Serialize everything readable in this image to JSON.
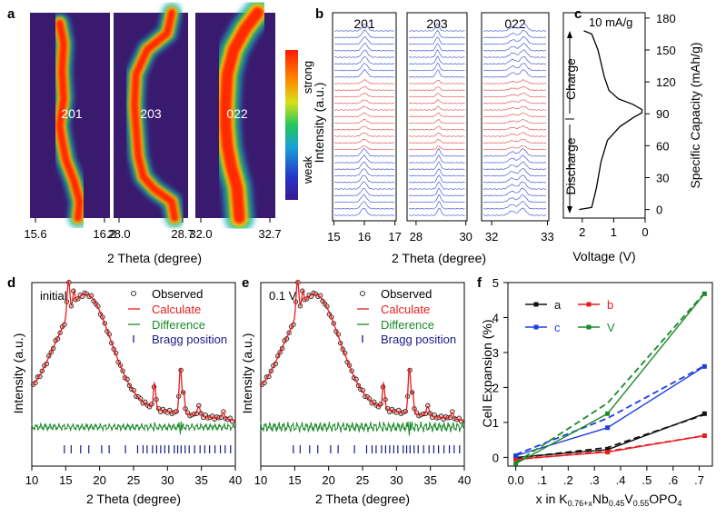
{
  "figure": {
    "panel_letters": [
      "a",
      "b",
      "c",
      "d",
      "e",
      "f"
    ]
  },
  "chart_data": [
    {
      "panel": "a",
      "type": "heatmap",
      "peaks": [
        "201",
        "203",
        "022"
      ],
      "xlabel": "2 Theta (degree)",
      "x_ticks": [
        [
          "15.6",
          "16.2"
        ],
        [
          "28.0",
          "28.7"
        ],
        [
          "32.0",
          "32.7"
        ]
      ],
      "colorbar": {
        "top": "strong",
        "bottom": "weak"
      },
      "colors": {
        "background": "#3a1a6e",
        "hot": "#ff2a00"
      },
      "ridge_paths": [
        [
          [
            0.37,
            0.05
          ],
          [
            0.42,
            0.15
          ],
          [
            0.4,
            0.28
          ],
          [
            0.42,
            0.42
          ],
          [
            0.37,
            0.55
          ],
          [
            0.4,
            0.62
          ],
          [
            0.45,
            0.72
          ],
          [
            0.55,
            0.82
          ],
          [
            0.62,
            0.92
          ],
          [
            0.6,
            1.0
          ]
        ],
        [
          [
            0.78,
            0.0
          ],
          [
            0.72,
            0.1
          ],
          [
            0.45,
            0.18
          ],
          [
            0.3,
            0.3
          ],
          [
            0.28,
            0.45
          ],
          [
            0.3,
            0.55
          ],
          [
            0.33,
            0.7
          ],
          [
            0.4,
            0.8
          ],
          [
            0.55,
            0.86
          ],
          [
            0.78,
            0.92
          ],
          [
            0.82,
            1.0
          ]
        ],
        [
          [
            0.78,
            0.0
          ],
          [
            0.62,
            0.08
          ],
          [
            0.48,
            0.18
          ],
          [
            0.4,
            0.3
          ],
          [
            0.38,
            0.45
          ],
          [
            0.38,
            0.55
          ],
          [
            0.4,
            0.65
          ],
          [
            0.45,
            0.75
          ],
          [
            0.52,
            0.85
          ],
          [
            0.55,
            1.0
          ]
        ]
      ]
    },
    {
      "panel": "b",
      "type": "line",
      "peaks": [
        "201",
        "203",
        "022"
      ],
      "ylabel": "Intensity (a.u.)",
      "xlabel": "2 Theta (degree)",
      "x_ticks": [
        [
          "15",
          "16",
          "17"
        ],
        [
          "28",
          "30"
        ],
        [
          "32",
          "33"
        ]
      ],
      "n_traces": 29,
      "highlight_range": [
        10,
        20
      ],
      "colors": {
        "normal": "#4a5cd8",
        "highlight": "#e85a5a"
      }
    },
    {
      "panel": "c",
      "type": "line",
      "annotation": "10 mA/g",
      "labels": [
        "Charge",
        "Discharge"
      ],
      "xlabel": "Voltage (V)",
      "ylabel": "Specific Capacity (mAh/g)",
      "x_ticks": [
        "2",
        "1",
        "0"
      ],
      "x_reversed": true,
      "xlim": [
        0,
        2.6
      ],
      "ylim": [
        -8,
        185
      ],
      "y_ticks": [
        0,
        30,
        60,
        90,
        120,
        150,
        180
      ],
      "curve": [
        [
          2.1,
          0
        ],
        [
          1.7,
          2
        ],
        [
          1.55,
          20
        ],
        [
          1.4,
          45
        ],
        [
          1.2,
          65
        ],
        [
          0.8,
          78
        ],
        [
          0.35,
          87
        ],
        [
          0.1,
          91
        ],
        [
          0.1,
          94
        ],
        [
          0.4,
          99
        ],
        [
          0.85,
          104
        ],
        [
          1.15,
          112
        ],
        [
          1.3,
          125
        ],
        [
          1.5,
          150
        ],
        [
          1.7,
          165
        ],
        [
          1.95,
          168
        ]
      ]
    },
    {
      "panel": "d",
      "type": "scatter",
      "title": "initial",
      "xlabel": "2 Theta (degree)",
      "ylabel": "Intensity (a.u.)",
      "xlim": [
        10,
        40
      ],
      "x_ticks": [
        10,
        15,
        20,
        25,
        30,
        35,
        40
      ],
      "legend": [
        "Observed",
        "Calculate",
        "Difference",
        "Bragg position"
      ],
      "bragg_positions": [
        14.8,
        15.8,
        17.2,
        18.4,
        20.3,
        21.4,
        23.8,
        25.6,
        26.4,
        27.0,
        27.8,
        28.4,
        29.0,
        29.6,
        30.2,
        31.0,
        31.5,
        32.0,
        32.6,
        33.2,
        34.0,
        34.8,
        35.5,
        36.2,
        37.0,
        37.8,
        38.5,
        39.3
      ]
    },
    {
      "panel": "e",
      "type": "scatter",
      "title": "0.1 V",
      "xlabel": "2 Theta (degree)",
      "ylabel": "Intensity (a.u.)",
      "xlim": [
        10,
        40
      ],
      "x_ticks": [
        10,
        15,
        20,
        25,
        30,
        35,
        40
      ],
      "legend": [
        "Observed",
        "Calculate",
        "Difference",
        "Bragg position"
      ],
      "bragg_positions": [
        14.8,
        15.8,
        17.2,
        18.4,
        20.3,
        21.4,
        23.8,
        25.6,
        26.4,
        27.0,
        27.8,
        28.4,
        29.0,
        29.6,
        30.2,
        31.0,
        31.5,
        32.0,
        32.6,
        33.2,
        34.0,
        34.8,
        35.5,
        36.2,
        37.0,
        37.8,
        38.5,
        39.3
      ]
    },
    {
      "panel": "f",
      "type": "line",
      "ylabel": "Cell Expansion (%)",
      "xlabel_parts": [
        "x in K",
        "0.76+x",
        "Nb",
        "0.45",
        "V",
        "0.55",
        "OPO",
        "4"
      ],
      "x_tick_labels": [
        "0.0",
        ".1",
        ".2",
        ".3",
        ".4",
        ".5",
        ".6",
        ".7"
      ],
      "x_ticks": [
        0,
        0.1,
        0.2,
        0.3,
        0.4,
        0.5,
        0.6,
        0.7
      ],
      "xlim": [
        -0.03,
        0.75
      ],
      "ylim": [
        -0.25,
        5
      ],
      "y_ticks": [
        0,
        1,
        2,
        3,
        4,
        5
      ],
      "series": [
        {
          "name": "a",
          "color": "#111111",
          "x": [
            0.0,
            0.35,
            0.72
          ],
          "solid": [
            0.0,
            0.22,
            1.25
          ],
          "dashed": [
            -0.02,
            0.28,
            1.22
          ]
        },
        {
          "name": "b",
          "color": "#e81c1c",
          "x": [
            0.0,
            0.35,
            0.72
          ],
          "solid": [
            -0.05,
            0.15,
            0.62
          ],
          "dashed": [
            -0.06,
            0.17,
            0.62
          ]
        },
        {
          "name": "c",
          "color": "#1f3fe0",
          "x": [
            0.0,
            0.35,
            0.72
          ],
          "solid": [
            0.05,
            0.85,
            2.6
          ],
          "dashed": [
            0.08,
            1.12,
            2.62
          ]
        },
        {
          "name": "V",
          "color": "#1a8a2a",
          "x": [
            0.0,
            0.35,
            0.72
          ],
          "solid": [
            -0.18,
            1.25,
            4.68
          ],
          "dashed": [
            -0.15,
            1.55,
            4.7
          ]
        }
      ]
    }
  ]
}
